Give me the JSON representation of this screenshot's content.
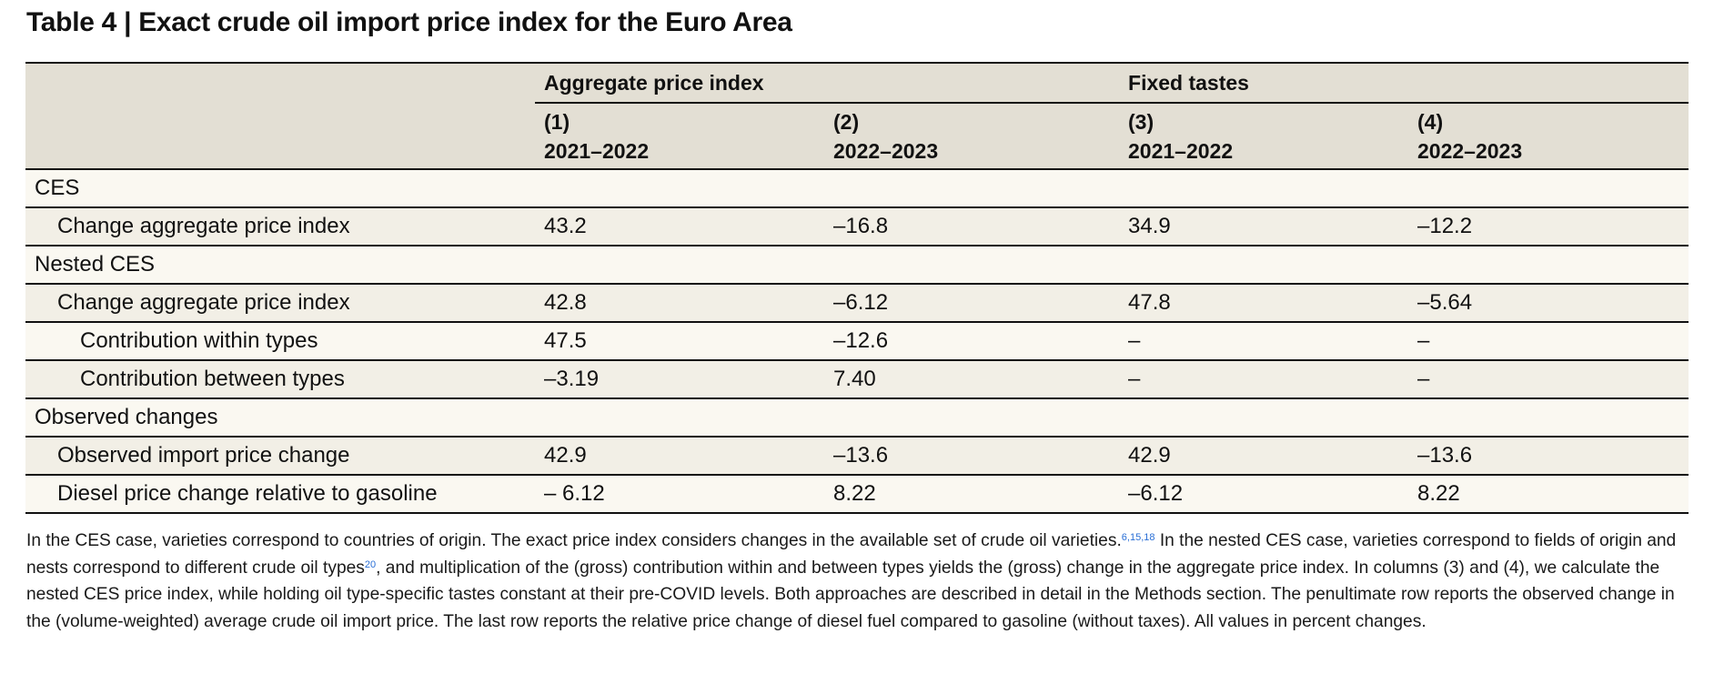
{
  "title": "Table 4 | Exact crude oil import price index for the Euro Area",
  "header": {
    "groups": [
      "Aggregate price index",
      "Fixed tastes"
    ],
    "columns": [
      {
        "num": "(1)",
        "period": "2021–2022"
      },
      {
        "num": "(2)",
        "period": "2022–2023"
      },
      {
        "num": "(3)",
        "period": "2021–2022"
      },
      {
        "num": "(4)",
        "period": "2022–2023"
      }
    ]
  },
  "rows": [
    {
      "label": "CES",
      "level": 0,
      "values": [
        "",
        "",
        "",
        ""
      ]
    },
    {
      "label": "Change aggregate price index",
      "level": 1,
      "values": [
        "43.2",
        "–16.8",
        "34.9",
        "–12.2"
      ]
    },
    {
      "label": "Nested CES",
      "level": 0,
      "values": [
        "",
        "",
        "",
        ""
      ]
    },
    {
      "label": "Change aggregate price index",
      "level": 1,
      "values": [
        "42.8",
        "–6.12",
        "47.8",
        "–5.64"
      ]
    },
    {
      "label": "Contribution within types",
      "level": 2,
      "values": [
        "47.5",
        "–12.6",
        "–",
        "–"
      ]
    },
    {
      "label": "Contribution between types",
      "level": 2,
      "values": [
        "–3.19",
        "7.40",
        "–",
        "–"
      ]
    },
    {
      "label": "Observed changes",
      "level": 0,
      "values": [
        "",
        "",
        "",
        ""
      ]
    },
    {
      "label": "Observed import price change",
      "level": 1,
      "values": [
        "42.9",
        "–13.6",
        "42.9",
        "–13.6"
      ]
    },
    {
      "label": "Diesel price change relative to gasoline",
      "level": 1,
      "values": [
        "– 6.12",
        "8.22",
        "–6.12",
        "8.22"
      ]
    }
  ],
  "note": {
    "part1": "In the CES case, varieties correspond to countries of origin. The exact price index considers changes in the available set of crude oil varieties.",
    "ref1": "6,15,18",
    "part2": " In the nested CES case, varieties correspond to fields of origin and nests correspond to different crude oil types",
    "ref2": "20",
    "part3": ", and multiplication of the (gross) contribution within and between types yields the (gross) change in the aggregate price index. In columns (3) and (4), we calculate the nested CES price index, while holding oil type-specific tastes constant at their pre-COVID levels. Both approaches are described in detail in the Methods section. The penultimate row reports the observed change in the (volume-weighted) average crude oil import price. The last row reports the relative price change of diesel fuel compared to gasoline (without taxes). All values in percent changes."
  }
}
